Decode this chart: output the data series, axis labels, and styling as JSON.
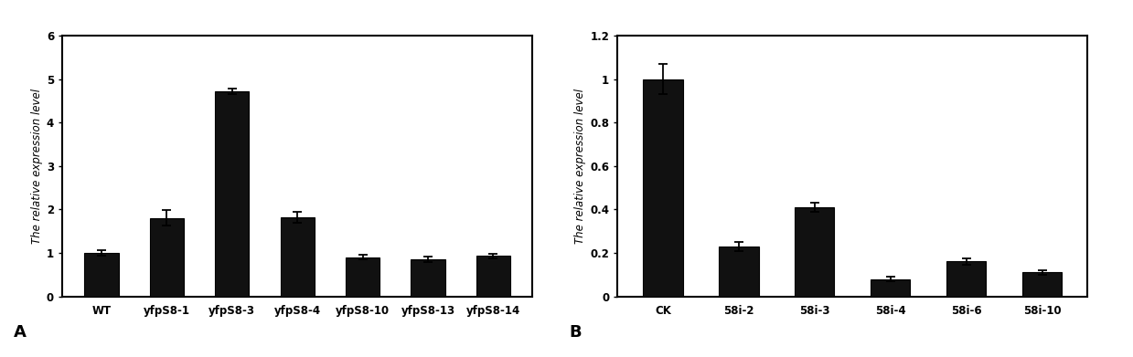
{
  "panel_A": {
    "categories": [
      "WT",
      "yfpS8-1",
      "yfpS8-3",
      "yfpS8-4",
      "yfpS8-10",
      "yfpS8-13",
      "yfpS8-14"
    ],
    "values": [
      1.0,
      1.8,
      4.72,
      1.82,
      0.9,
      0.85,
      0.93
    ],
    "errors": [
      0.07,
      0.18,
      0.07,
      0.12,
      0.05,
      0.06,
      0.05
    ],
    "ylabel": "The relative expression level",
    "ylim": [
      0,
      6
    ],
    "yticks": [
      0,
      1,
      2,
      3,
      4,
      5,
      6
    ],
    "label": "A"
  },
  "panel_B": {
    "categories": [
      "CK",
      "58i-2",
      "58i-3",
      "58i-4",
      "58i-6",
      "58i-10"
    ],
    "values": [
      1.0,
      0.23,
      0.41,
      0.08,
      0.16,
      0.11
    ],
    "errors": [
      0.07,
      0.02,
      0.02,
      0.01,
      0.015,
      0.01
    ],
    "ylabel": "The relative expression level",
    "ylim": [
      0,
      1.2
    ],
    "yticks": [
      0,
      0.2,
      0.4,
      0.6,
      0.8,
      1.0,
      1.2
    ],
    "label": "B"
  },
  "bar_color": "#111111",
  "bar_edge_color": "#000000",
  "plot_bg": "#ffffff",
  "figure_bg": "#ffffff",
  "tick_fontsize": 8.5,
  "ylabel_fontsize": 8.5,
  "panel_label_fontsize": 13,
  "bar_width": 0.52
}
